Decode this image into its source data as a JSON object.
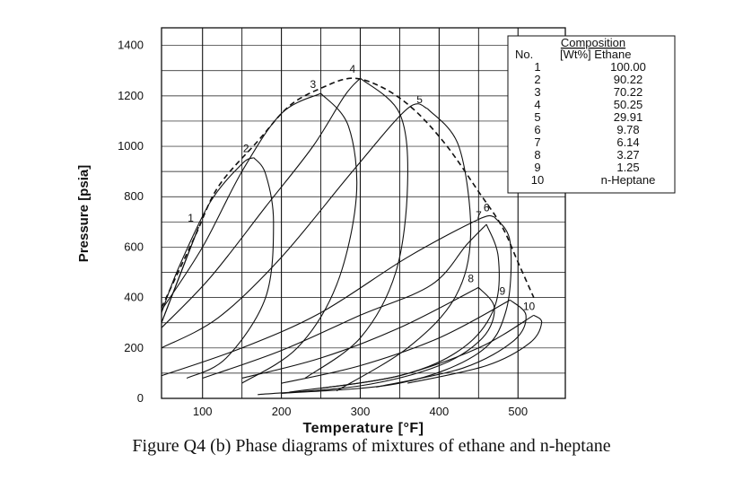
{
  "caption": "Figure Q4 (b) Phase diagrams of mixtures of ethane and n-heptane",
  "chart_data": {
    "type": "line",
    "title": "",
    "xlabel": "Temperature [°F]",
    "ylabel": "Pressure [psia]",
    "xlim": [
      48,
      560
    ],
    "ylim": [
      0,
      1470
    ],
    "xticks": [
      100,
      200,
      300,
      400,
      500
    ],
    "yticks": [
      0,
      200,
      400,
      600,
      800,
      1000,
      1200,
      1400
    ],
    "grid": true,
    "legend": {
      "title": "Composition",
      "header_no": "No.",
      "header_comp": "[Wt%] Ethane",
      "placement": "top-right",
      "entries": [
        {
          "no": "1",
          "comp": "100.00"
        },
        {
          "no": "2",
          "comp": "90.22"
        },
        {
          "no": "3",
          "comp": "70.22"
        },
        {
          "no": "4",
          "comp": "50.25"
        },
        {
          "no": "5",
          "comp": "29.91"
        },
        {
          "no": "6",
          "comp": "9.78"
        },
        {
          "no": "7",
          "comp": "6.14"
        },
        {
          "no": "8",
          "comp": "3.27"
        },
        {
          "no": "9",
          "comp": "1.25"
        },
        {
          "no": "10",
          "comp": "n-Heptane"
        }
      ]
    },
    "critical_locus": [
      [
        48,
        360
      ],
      [
        90,
        640
      ],
      [
        120,
        840
      ],
      [
        170,
        1020
      ],
      [
        210,
        1160
      ],
      [
        250,
        1230
      ],
      [
        290,
        1270
      ],
      [
        330,
        1230
      ],
      [
        370,
        1140
      ],
      [
        410,
        1000
      ],
      [
        450,
        820
      ],
      [
        480,
        680
      ],
      [
        500,
        540
      ],
      [
        520,
        400
      ]
    ],
    "series": [
      {
        "label": "1",
        "bubble": [
          [
            48,
            300
          ],
          [
            95,
            680
          ]
        ],
        "dew": [
          [
            48,
            300
          ],
          [
            95,
            680
          ]
        ]
      },
      {
        "label": "2",
        "bubble": [
          [
            48,
            340
          ],
          [
            70,
            520
          ],
          [
            110,
            780
          ],
          [
            150,
            930
          ],
          [
            165,
            955
          ]
        ],
        "dew": [
          [
            165,
            955
          ],
          [
            180,
            890
          ],
          [
            190,
            700
          ],
          [
            180,
            400
          ],
          [
            130,
            160
          ],
          [
            80,
            80
          ]
        ]
      },
      {
        "label": "3",
        "bubble": [
          [
            48,
            350
          ],
          [
            100,
            600
          ],
          [
            150,
            900
          ],
          [
            200,
            1130
          ],
          [
            250,
            1210
          ]
        ],
        "dew": [
          [
            250,
            1210
          ],
          [
            285,
            1080
          ],
          [
            295,
            800
          ],
          [
            270,
            450
          ],
          [
            220,
            200
          ],
          [
            150,
            60
          ]
        ]
      },
      {
        "label": "4",
        "bubble": [
          [
            48,
            280
          ],
          [
            110,
            480
          ],
          [
            180,
            760
          ],
          [
            240,
            1000
          ],
          [
            280,
            1200
          ],
          [
            300,
            1270
          ]
        ],
        "dew": [
          [
            300,
            1270
          ],
          [
            350,
            1130
          ],
          [
            360,
            850
          ],
          [
            345,
            500
          ],
          [
            300,
            240
          ],
          [
            230,
            80
          ]
        ]
      },
      {
        "label": "5",
        "bubble": [
          [
            48,
            200
          ],
          [
            120,
            320
          ],
          [
            200,
            560
          ],
          [
            290,
            900
          ],
          [
            360,
            1150
          ],
          [
            385,
            1150
          ]
        ],
        "dew": [
          [
            385,
            1150
          ],
          [
            425,
            1000
          ],
          [
            440,
            650
          ],
          [
            420,
            400
          ],
          [
            360,
            200
          ],
          [
            270,
            30
          ]
        ]
      },
      {
        "label": "6",
        "bubble": [
          [
            48,
            90
          ],
          [
            150,
            200
          ],
          [
            250,
            340
          ],
          [
            360,
            560
          ],
          [
            450,
            710
          ],
          [
            470,
            720
          ]
        ],
        "dew": [
          [
            470,
            720
          ],
          [
            490,
            620
          ],
          [
            485,
            350
          ],
          [
            450,
            180
          ],
          [
            350,
            60
          ],
          [
            200,
            20
          ]
        ]
      },
      {
        "label": "7",
        "bubble": [
          [
            100,
            80
          ],
          [
            200,
            190
          ],
          [
            300,
            330
          ],
          [
            390,
            450
          ],
          [
            435,
            610
          ],
          [
            460,
            690
          ]
        ],
        "dew": [
          [
            460,
            690
          ],
          [
            475,
            560
          ],
          [
            470,
            360
          ],
          [
            430,
            200
          ],
          [
            350,
            90
          ],
          [
            210,
            25
          ]
        ]
      },
      {
        "label": "8",
        "bubble": [
          [
            150,
            80
          ],
          [
            250,
            160
          ],
          [
            350,
            280
          ],
          [
            450,
            440
          ]
        ],
        "dew": [
          [
            450,
            440
          ],
          [
            470,
            360
          ],
          [
            455,
            240
          ],
          [
            400,
            130
          ],
          [
            300,
            50
          ],
          [
            170,
            15
          ]
        ]
      },
      {
        "label": "9",
        "bubble": [
          [
            200,
            60
          ],
          [
            300,
            130
          ],
          [
            400,
            240
          ],
          [
            490,
            390
          ]
        ],
        "dew": [
          [
            490,
            390
          ],
          [
            510,
            330
          ],
          [
            495,
            230
          ],
          [
            430,
            120
          ],
          [
            320,
            45
          ]
        ]
      },
      {
        "label": "10",
        "bubble": [
          [
            250,
            40
          ],
          [
            350,
            90
          ],
          [
            450,
            200
          ],
          [
            520,
            330
          ]
        ],
        "dew": [
          [
            520,
            330
          ],
          [
            530,
            300
          ],
          [
            515,
            220
          ],
          [
            460,
            130
          ],
          [
            360,
            60
          ]
        ]
      }
    ]
  }
}
